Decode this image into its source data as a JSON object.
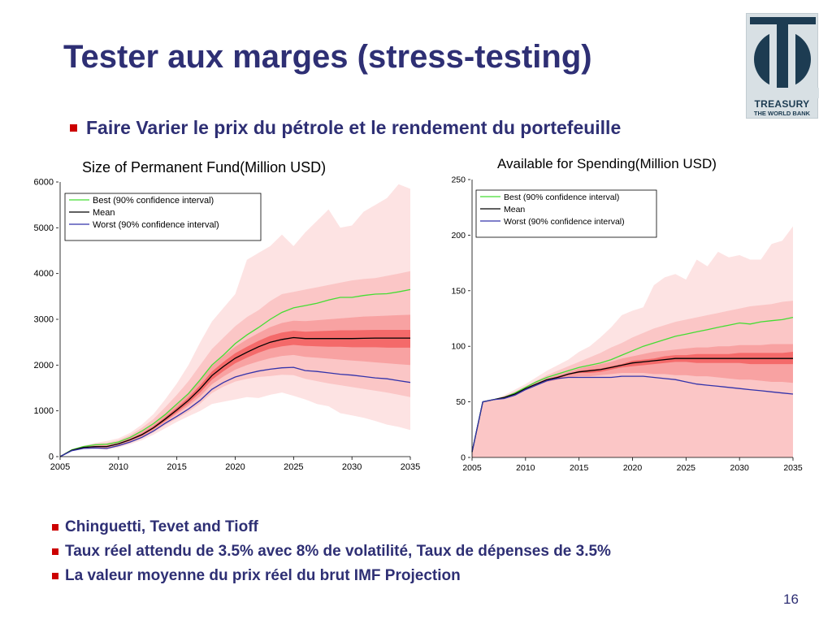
{
  "slide": {
    "title": "Tester aux marges (stress-testing)",
    "subtitle": "Faire Varier le prix du pétrole et le rendement du portefeuille",
    "bullets": [
      "Chinguetti, Tevet and Tioff",
      "Taux réel attendu de 3.5% avec 8% de volatilité, Taux de dépenses de 3.5%",
      "La valeur moyenne du prix réel du brut IMF Projection"
    ],
    "page_number": "16"
  },
  "logo": {
    "line1": "TREASURY",
    "line2": "THE WORLD BANK"
  },
  "colors": {
    "title": "#2e2f74",
    "bullet_marker": "#cc0000",
    "best": "#44dd33",
    "mean": "#000000",
    "worst": "#3333aa",
    "band_outer": "#fde3e3",
    "band_mid": "#fbc6c6",
    "band_inner": "#f8a2a2",
    "band_core": "#f46a6a"
  },
  "chart_data": [
    {
      "type": "area",
      "title": "Size of Permanent Fund(Million USD)",
      "xlim": [
        2005,
        2035
      ],
      "ylim": [
        0,
        6000
      ],
      "x_ticks": [
        2005,
        2010,
        2015,
        2020,
        2025,
        2030,
        2035
      ],
      "x_tick_labels": [
        "2005",
        "2010",
        "2015",
        "2020",
        "2025",
        "2030",
        "2035"
      ],
      "y_ticks": [
        0,
        1000,
        2000,
        3000,
        4000,
        5000,
        6000
      ],
      "y_tick_labels": [
        "0",
        "1000",
        "2000",
        "3000",
        "4000",
        "5000",
        "6000"
      ],
      "legend_position": "top-left",
      "x": [
        2005,
        2006,
        2007,
        2008,
        2009,
        2010,
        2011,
        2012,
        2013,
        2014,
        2015,
        2016,
        2017,
        2018,
        2019,
        2020,
        2021,
        2022,
        2023,
        2024,
        2025,
        2026,
        2027,
        2028,
        2029,
        2030,
        2031,
        2032,
        2033,
        2034,
        2035
      ],
      "series": [
        {
          "name": "Best (90% confidence interval)",
          "values": [
            0,
            150,
            220,
            260,
            270,
            320,
            420,
            560,
            720,
            920,
            1150,
            1380,
            1680,
            2000,
            2220,
            2470,
            2660,
            2820,
            3000,
            3150,
            3250,
            3300,
            3350,
            3420,
            3480,
            3480,
            3520,
            3550,
            3560,
            3600,
            3650
          ]
        },
        {
          "name": "Mean",
          "values": [
            0,
            140,
            200,
            220,
            220,
            280,
            370,
            480,
            630,
            820,
            1020,
            1230,
            1480,
            1770,
            1970,
            2150,
            2280,
            2400,
            2500,
            2560,
            2600,
            2580,
            2580,
            2580,
            2580,
            2580,
            2585,
            2590,
            2590,
            2590,
            2590
          ]
        },
        {
          "name": "Worst (90% confidence interval)",
          "values": [
            0,
            130,
            180,
            190,
            180,
            240,
            320,
            420,
            560,
            730,
            880,
            1040,
            1230,
            1470,
            1620,
            1740,
            1810,
            1870,
            1910,
            1940,
            1950,
            1880,
            1860,
            1830,
            1800,
            1780,
            1750,
            1720,
            1700,
            1660,
            1620
          ]
        }
      ],
      "bands": [
        {
          "upper": [
            0,
            160,
            240,
            300,
            340,
            400,
            520,
            700,
            930,
            1250,
            1600,
            2000,
            2500,
            2950,
            3250,
            3550,
            4300,
            4450,
            4600,
            4850,
            4600,
            4900,
            5150,
            5400,
            5000,
            5050,
            5350,
            5500,
            5650,
            5950,
            5850
          ],
          "lower": [
            0,
            120,
            160,
            170,
            150,
            200,
            270,
            360,
            480,
            620,
            760,
            880,
            1000,
            1150,
            1200,
            1250,
            1300,
            1280,
            1350,
            1400,
            1330,
            1250,
            1150,
            1100,
            950,
            900,
            850,
            780,
            700,
            650,
            580
          ]
        },
        {
          "upper": [
            0,
            155,
            230,
            280,
            300,
            360,
            470,
            630,
            820,
            1080,
            1350,
            1650,
            2000,
            2350,
            2600,
            2850,
            3050,
            3200,
            3400,
            3550,
            3600,
            3650,
            3700,
            3750,
            3800,
            3850,
            3880,
            3900,
            3950,
            4000,
            4050
          ],
          "lower": [
            0,
            125,
            170,
            180,
            170,
            220,
            300,
            400,
            530,
            690,
            830,
            980,
            1160,
            1390,
            1530,
            1640,
            1700,
            1740,
            1760,
            1790,
            1780,
            1700,
            1650,
            1600,
            1560,
            1520,
            1480,
            1440,
            1400,
            1350,
            1300
          ]
        },
        {
          "upper": [
            0,
            150,
            215,
            245,
            250,
            310,
            410,
            540,
            700,
            910,
            1130,
            1370,
            1660,
            1980,
            2200,
            2400,
            2560,
            2700,
            2830,
            2920,
            2970,
            2960,
            2980,
            3000,
            3020,
            3040,
            3060,
            3070,
            3080,
            3090,
            3100
          ],
          "lower": [
            0,
            130,
            185,
            200,
            190,
            250,
            335,
            440,
            580,
            760,
            930,
            1110,
            1320,
            1580,
            1750,
            1900,
            2000,
            2080,
            2150,
            2200,
            2220,
            2180,
            2160,
            2140,
            2120,
            2100,
            2080,
            2060,
            2040,
            2020,
            2000
          ]
        },
        {
          "upper": [
            0,
            145,
            205,
            230,
            232,
            292,
            388,
            505,
            660,
            860,
            1070,
            1290,
            1560,
            1860,
            2070,
            2260,
            2400,
            2530,
            2640,
            2710,
            2750,
            2730,
            2740,
            2750,
            2760,
            2760,
            2765,
            2770,
            2770,
            2770,
            2770
          ],
          "lower": [
            0,
            135,
            195,
            210,
            208,
            268,
            352,
            455,
            600,
            780,
            970,
            1170,
            1400,
            1680,
            1870,
            2040,
            2160,
            2270,
            2360,
            2410,
            2440,
            2420,
            2410,
            2400,
            2400,
            2390,
            2390,
            2390,
            2380,
            2380,
            2380
          ]
        }
      ]
    },
    {
      "type": "area",
      "title": "Available for Spending(Million USD)",
      "xlim": [
        2005,
        2035
      ],
      "ylim": [
        0,
        250
      ],
      "x_ticks": [
        2005,
        2010,
        2015,
        2020,
        2025,
        2030,
        2035
      ],
      "x_tick_labels": [
        "2005",
        "2010",
        "2015",
        "2020",
        "2025",
        "2030",
        "2035"
      ],
      "y_ticks": [
        0,
        50,
        100,
        150,
        200,
        250
      ],
      "y_tick_labels": [
        "0",
        "50",
        "100",
        "150",
        "200",
        "250"
      ],
      "legend_position": "top-left",
      "x": [
        2005,
        2006,
        2007,
        2008,
        2009,
        2010,
        2011,
        2012,
        2013,
        2014,
        2015,
        2016,
        2017,
        2018,
        2019,
        2020,
        2021,
        2022,
        2023,
        2024,
        2025,
        2026,
        2027,
        2028,
        2029,
        2030,
        2031,
        2032,
        2033,
        2034,
        2035
      ],
      "series": [
        {
          "name": "Best (90% confidence interval)",
          "values": [
            5,
            50,
            52,
            54,
            58,
            63,
            68,
            72,
            75,
            78,
            81,
            83,
            85,
            88,
            92,
            96,
            100,
            103,
            106,
            109,
            111,
            113,
            115,
            117,
            119,
            121,
            120,
            122,
            123,
            124,
            126
          ]
        },
        {
          "name": "Mean",
          "values": [
            5,
            50,
            52,
            54,
            57,
            62,
            66,
            70,
            72,
            75,
            77,
            78,
            79,
            81,
            83,
            85,
            86,
            87,
            88,
            89,
            89,
            89,
            89,
            89,
            89,
            89,
            89,
            89,
            89,
            89,
            89
          ]
        },
        {
          "name": "Worst (90% confidence interval)",
          "values": [
            5,
            50,
            52,
            53,
            56,
            61,
            65,
            69,
            71,
            72,
            72,
            72,
            72,
            72,
            73,
            73,
            73,
            72,
            71,
            70,
            68,
            66,
            65,
            64,
            63,
            62,
            61,
            60,
            59,
            58,
            57
          ]
        }
      ],
      "bands": [
        {
          "upper": [
            5,
            50,
            52,
            56,
            61,
            66,
            72,
            78,
            83,
            88,
            95,
            100,
            108,
            117,
            128,
            132,
            135,
            155,
            162,
            165,
            160,
            178,
            172,
            185,
            180,
            182,
            178,
            178,
            192,
            195,
            208
          ],
          "lower": [
            5,
            50,
            52,
            53,
            55,
            60,
            63,
            66,
            68,
            68,
            68,
            66,
            64,
            63,
            62,
            60,
            58,
            55,
            52,
            50,
            47,
            44,
            42,
            40,
            38,
            34,
            32,
            30,
            28,
            25,
            22
          ]
        },
        {
          "upper": [
            5,
            50,
            52,
            55,
            59,
            64,
            69,
            74,
            78,
            82,
            86,
            90,
            94,
            99,
            103,
            108,
            112,
            116,
            119,
            122,
            124,
            126,
            128,
            130,
            132,
            134,
            136,
            137,
            138,
            140,
            141
          ]
        },
        {
          "upper": [
            5,
            50,
            52,
            54,
            58,
            63,
            67,
            71,
            74,
            77,
            80,
            82,
            84,
            86,
            89,
            91,
            93,
            95,
            96,
            97,
            98,
            99,
            99,
            100,
            100,
            101,
            101,
            101,
            102,
            102,
            102
          ],
          "lower": [
            5,
            50,
            52,
            53,
            56,
            61,
            65,
            68,
            70,
            72,
            73,
            73,
            74,
            75,
            76,
            76,
            76,
            75,
            75,
            74,
            74,
            73,
            73,
            72,
            71,
            70,
            70,
            69,
            68,
            68,
            67
          ]
        },
        {
          "upper": [
            5,
            50,
            52,
            54,
            57,
            62,
            66,
            70,
            73,
            75,
            78,
            79,
            80,
            82,
            84,
            87,
            88,
            89,
            91,
            92,
            92,
            93,
            93,
            93,
            93,
            94,
            94,
            94,
            94,
            94,
            95
          ],
          "lower": [
            5,
            50,
            52,
            54,
            57,
            62,
            66,
            69,
            71,
            74,
            76,
            76,
            77,
            79,
            81,
            82,
            83,
            84,
            85,
            86,
            86,
            85,
            85,
            85,
            85,
            85,
            84,
            84,
            84,
            84,
            84
          ]
        }
      ]
    }
  ]
}
